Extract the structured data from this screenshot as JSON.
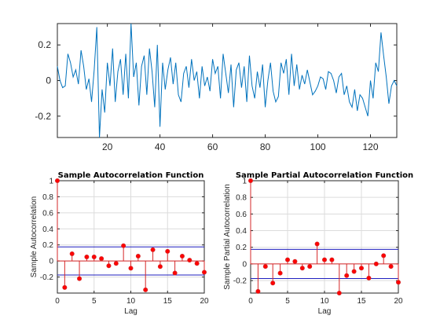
{
  "colors": {
    "series": "#0072bd",
    "stem": "#d62728",
    "marker": "#ff0000",
    "bounds": "#1f1fbf",
    "axis": "#262626",
    "grid": "#dcdcdc",
    "background": "#ffffff"
  },
  "chart_data": [
    {
      "type": "line",
      "title": "",
      "xlabel": "",
      "ylabel": "",
      "xlim": [
        1,
        130
      ],
      "ylim": [
        -0.32,
        0.32
      ],
      "x_ticks": [
        20,
        40,
        60,
        80,
        100,
        120
      ],
      "y_ticks": [
        -0.2,
        0,
        0.2
      ],
      "x_tick_labels": [
        "20",
        "40",
        "60",
        "80",
        "100",
        "120"
      ],
      "y_tick_labels": [
        "-0.2",
        "0",
        "0.2"
      ],
      "grid": false,
      "series": [
        {
          "x_start": 1,
          "values": [
            0.08,
            0.0,
            -0.04,
            -0.03,
            0.15,
            0.1,
            0.02,
            0.06,
            -0.02,
            0.17,
            0.08,
            -0.05,
            0.01,
            -0.12,
            0.06,
            0.3,
            -0.32,
            -0.05,
            -0.18,
            0.1,
            -0.03,
            0.18,
            -0.12,
            0.05,
            0.12,
            -0.08,
            0.15,
            -0.1,
            0.32,
            0.02,
            0.1,
            -0.14,
            0.08,
            0.14,
            -0.08,
            0.18,
            0.05,
            -0.15,
            0.2,
            -0.26,
            0.1,
            -0.05,
            0.06,
            0.13,
            -0.02,
            0.1,
            -0.08,
            -0.12,
            0.04,
            0.08,
            -0.04,
            0.12,
            0.0,
            0.05,
            -0.1,
            0.08,
            -0.03,
            0.02,
            -0.06,
            0.12,
            0.04,
            0.08,
            -0.1,
            0.15,
            0.04,
            -0.07,
            0.09,
            -0.15,
            0.06,
            0.1,
            -0.04,
            0.08,
            -0.12,
            0.14,
            -0.03,
            -0.1,
            0.05,
            -0.04,
            0.09,
            -0.15,
            0.0,
            0.1,
            -0.06,
            -0.12,
            -0.09,
            0.1,
            0.04,
            0.12,
            -0.08,
            0.15,
            -0.03,
            0.09,
            -0.05,
            0.03,
            -0.02,
            0.06,
            -0.01,
            -0.08,
            -0.06,
            -0.03,
            0.02,
            0.01,
            -0.05,
            0.05,
            0.04,
            0.0,
            -0.07,
            0.02,
            0.04,
            -0.08,
            -0.03,
            -0.12,
            -0.15,
            -0.05,
            -0.17,
            -0.08,
            -0.1,
            -0.15,
            -0.2,
            0.0,
            -0.1,
            0.1,
            0.05,
            0.27,
            0.14,
            0.02,
            -0.13,
            -0.03,
            0.0,
            -0.03
          ]
        }
      ]
    },
    {
      "type": "scatter",
      "style": "stem",
      "title": "Sample Autocorrelation Function",
      "xlabel": "Lag",
      "ylabel": "Sample Autocorrelation",
      "xlim": [
        0,
        20
      ],
      "ylim": [
        -0.4,
        1.0
      ],
      "x_ticks": [
        0,
        5,
        10,
        15,
        20
      ],
      "y_ticks": [
        -0.2,
        0,
        0.2,
        0.4,
        0.6,
        0.8,
        1
      ],
      "x_tick_labels": [
        "0",
        "5",
        "10",
        "15",
        "20"
      ],
      "y_tick_labels": [
        "-0.2",
        "0",
        "0.2",
        "0.4",
        "0.6",
        "0.8",
        "1"
      ],
      "grid": true,
      "bounds": [
        0.175,
        -0.175
      ],
      "series": [
        {
          "x": [
            0,
            1,
            2,
            3,
            4,
            5,
            6,
            7,
            8,
            9,
            10,
            11,
            12,
            13,
            14,
            15,
            16,
            17,
            18,
            19,
            20
          ],
          "values": [
            1.0,
            -0.33,
            0.09,
            -0.22,
            0.05,
            0.05,
            0.03,
            -0.06,
            -0.03,
            0.19,
            -0.09,
            0.06,
            -0.36,
            0.14,
            -0.07,
            0.12,
            -0.15,
            0.06,
            0.01,
            -0.03,
            -0.14
          ]
        }
      ]
    },
    {
      "type": "scatter",
      "style": "stem",
      "title": "Sample Partial Autocorrelation Function",
      "xlabel": "Lag",
      "ylabel": "Sample Partial Autocorrelation",
      "xlim": [
        0,
        20
      ],
      "ylim": [
        -0.35,
        1.0
      ],
      "x_ticks": [
        0,
        5,
        10,
        15,
        20
      ],
      "y_ticks": [
        -0.2,
        0,
        0.2,
        0.4,
        0.6,
        0.8,
        1
      ],
      "x_tick_labels": [
        "0",
        "5",
        "10",
        "15",
        "20"
      ],
      "y_tick_labels": [
        "-0.2",
        "0",
        "0.2",
        "0.4",
        "0.6",
        "0.8",
        "1"
      ],
      "grid": true,
      "bounds": [
        0.175,
        -0.175
      ],
      "series": [
        {
          "x": [
            0,
            1,
            2,
            3,
            4,
            5,
            6,
            7,
            8,
            9,
            10,
            11,
            12,
            13,
            14,
            15,
            16,
            17,
            18,
            19,
            20
          ],
          "values": [
            1.0,
            -0.33,
            -0.03,
            -0.23,
            -0.11,
            0.05,
            0.03,
            -0.05,
            -0.03,
            0.24,
            0.05,
            0.05,
            -0.35,
            -0.14,
            -0.09,
            -0.05,
            -0.17,
            0.0,
            0.1,
            -0.03,
            -0.22
          ]
        }
      ]
    }
  ]
}
